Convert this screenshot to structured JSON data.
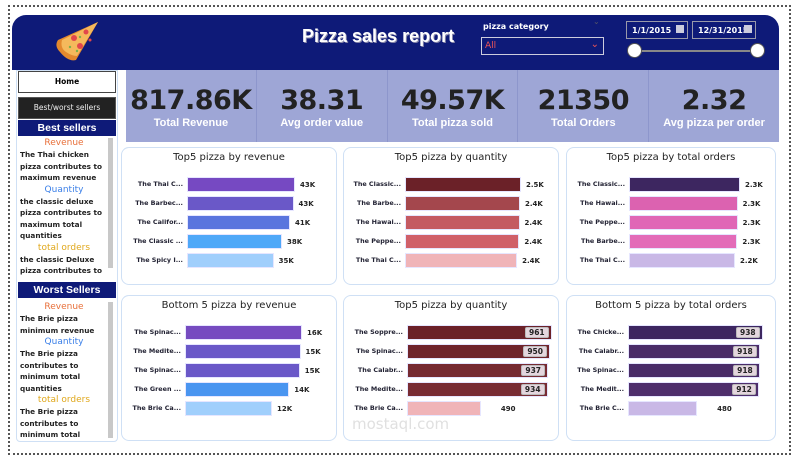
{
  "header": {
    "title": "Pizza sales report",
    "logo": "pizza-slice",
    "category_label": "pizza category",
    "category_value": "All",
    "date_start": "1/1/2015",
    "date_end": "12/31/2015",
    "slider_range": [
      0,
      1
    ]
  },
  "nav": {
    "home": "Home",
    "best_worst": "Best/worst sellers"
  },
  "best": {
    "title": "Best sellers",
    "revenue_h": "Revenue",
    "revenue_t": "The Thai chicken pizza contributes to maximum revenue",
    "quantity_h": "Quantity",
    "quantity_t": "the classic deluxe pizza contributes to maximum total quantities",
    "orders_h": "total orders",
    "orders_t": "the classic Deluxe pizza contributes to"
  },
  "worst": {
    "title": "Worst Sellers",
    "revenue_h": "Revenue",
    "revenue_t": "The Brie pizza minimum revenue",
    "quantity_h": "Quantity",
    "quantity_t": "The Brie pizza contributes to minimum total quantities",
    "orders_h": "total orders",
    "orders_t": "The Brie pizza contributes to minimum total orders"
  },
  "kpis": [
    {
      "value": "817.86K",
      "label": "Total Revenue"
    },
    {
      "value": "38.31",
      "label": "Avg order value"
    },
    {
      "value": "49.57K",
      "label": "Total pizza sold"
    },
    {
      "value": "21350",
      "label": "Total Orders"
    },
    {
      "value": "2.32",
      "label": "Avg pizza per order"
    }
  ],
  "watermark": "مستقل mostaql.com",
  "chart_data": [
    {
      "type": "bar",
      "orientation": "horizontal",
      "title": "Top5 pizza by revenue",
      "categories": [
        "The Thai C...",
        "The Barbec...",
        "The Califor...",
        "The Classic ...",
        "The Spicy I..."
      ],
      "values": [
        43400,
        42800,
        41400,
        38200,
        34800
      ],
      "labels": [
        "43K",
        "43K",
        "41K",
        "38K",
        "35K"
      ],
      "colors": [
        "#7649C2",
        "#6A58C8",
        "#5A75DE",
        "#4FA8F8",
        "#A0CFFC"
      ]
    },
    {
      "type": "bar",
      "orientation": "horizontal",
      "title": "Top5 pizza by quantity",
      "categories": [
        "The Classic...",
        "The Barbe...",
        "The Hawai...",
        "The Peppe...",
        "The Thai C..."
      ],
      "values": [
        2453,
        2432,
        2422,
        2418,
        2371
      ],
      "labels": [
        "2.5K",
        "2.4K",
        "2.4K",
        "2.4K",
        "2.4K"
      ],
      "colors": [
        "#6B2128",
        "#A4474D",
        "#C45A62",
        "#D06069",
        "#F0B4B8"
      ]
    },
    {
      "type": "bar",
      "orientation": "horizontal",
      "title": "Top5 pizza by total orders",
      "categories": [
        "The Classic...",
        "The Hawai...",
        "The Peppe...",
        "The Barbe...",
        "The Thai C..."
      ],
      "values": [
        2329,
        2280,
        2278,
        2273,
        2225
      ],
      "labels": [
        "2.3K",
        "2.3K",
        "2.3K",
        "2.3K",
        "2.2K"
      ],
      "colors": [
        "#3D2660",
        "#DC62B0",
        "#E066B6",
        "#E36BB8",
        "#C9B8E6"
      ]
    },
    {
      "type": "bar",
      "orientation": "horizontal",
      "title": "Bottom 5 pizza by revenue",
      "categories": [
        "The Spinac...",
        "The Medite...",
        "The Spinac...",
        "The Green ...",
        "The Brie Ca..."
      ],
      "values": [
        15600,
        15400,
        15300,
        13900,
        11600
      ],
      "labels": [
        "16K",
        "15K",
        "15K",
        "14K",
        "12K"
      ],
      "colors": [
        "#764BC0",
        "#6A58C8",
        "#6A58C8",
        "#4A95F0",
        "#A0CFFC"
      ]
    },
    {
      "type": "bar",
      "orientation": "horizontal",
      "title": "Top5 pizza by quantity",
      "categories": [
        "The Soppre...",
        "The Spinac...",
        "The Calabr...",
        "The Medite...",
        "The Brie Ca..."
      ],
      "values": [
        961,
        950,
        937,
        934,
        490
      ],
      "labels": [
        "961",
        "950",
        "937",
        "934",
        "490"
      ],
      "colors": [
        "#6B2128",
        "#6F242B",
        "#762A31",
        "#782C33",
        "#F0B4B8"
      ]
    },
    {
      "type": "bar",
      "orientation": "horizontal",
      "title": "Bottom 5 pizza by total orders",
      "categories": [
        "The Chicke...",
        "The Calabr...",
        "The Spinac...",
        "The Medit...",
        "The Brie C..."
      ],
      "values": [
        938,
        918,
        918,
        912,
        480
      ],
      "labels": [
        "938",
        "918",
        "918",
        "912",
        "480"
      ],
      "colors": [
        "#3D2660",
        "#4A2C68",
        "#4A2C68",
        "#4E2E6C",
        "#C9B8E6"
      ]
    }
  ]
}
